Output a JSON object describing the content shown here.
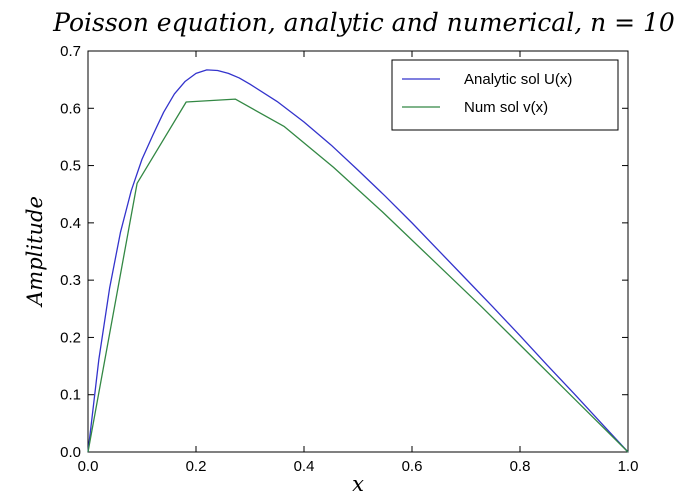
{
  "chart_data": {
    "type": "line",
    "title": "Poisson equation, analytic and numerical,  n = 10",
    "xlabel": "x",
    "ylabel": "Amplitude",
    "xlim": [
      0.0,
      1.0
    ],
    "ylim": [
      0.0,
      0.7
    ],
    "xticks": [
      "0.0",
      "0.2",
      "0.4",
      "0.6",
      "0.8",
      "1.0"
    ],
    "yticks": [
      "0.0",
      "0.1",
      "0.2",
      "0.3",
      "0.4",
      "0.5",
      "0.6",
      "0.7"
    ],
    "grid": false,
    "legend_position": "top-right",
    "series": [
      {
        "name": "Analytic sol U(x)",
        "color": "#3333cc",
        "x": [
          0.0,
          0.02,
          0.04,
          0.06,
          0.08,
          0.1,
          0.12,
          0.14,
          0.16,
          0.18,
          0.2,
          0.22,
          0.24,
          0.26,
          0.28,
          0.3,
          0.35,
          0.4,
          0.45,
          0.5,
          0.55,
          0.6,
          0.65,
          0.7,
          0.75,
          0.8,
          0.85,
          0.9,
          0.95,
          1.0
        ],
        "y": [
          0.0,
          0.161,
          0.286,
          0.383,
          0.456,
          0.511,
          0.553,
          0.593,
          0.625,
          0.647,
          0.661,
          0.667,
          0.666,
          0.661,
          0.653,
          0.642,
          0.612,
          0.576,
          0.536,
          0.492,
          0.447,
          0.4,
          0.351,
          0.302,
          0.253,
          0.203,
          0.152,
          0.102,
          0.051,
          0.0
        ]
      },
      {
        "name": "Num sol v(x)",
        "color": "#338844",
        "x": [
          0.0,
          0.0909,
          0.1818,
          0.2727,
          0.3636,
          0.4545,
          0.5455,
          0.6364,
          0.7273,
          0.8182,
          0.9091,
          1.0
        ],
        "y": [
          0.0,
          0.469,
          0.611,
          0.616,
          0.568,
          0.497,
          0.419,
          0.337,
          0.255,
          0.17,
          0.085,
          0.0
        ]
      }
    ]
  }
}
